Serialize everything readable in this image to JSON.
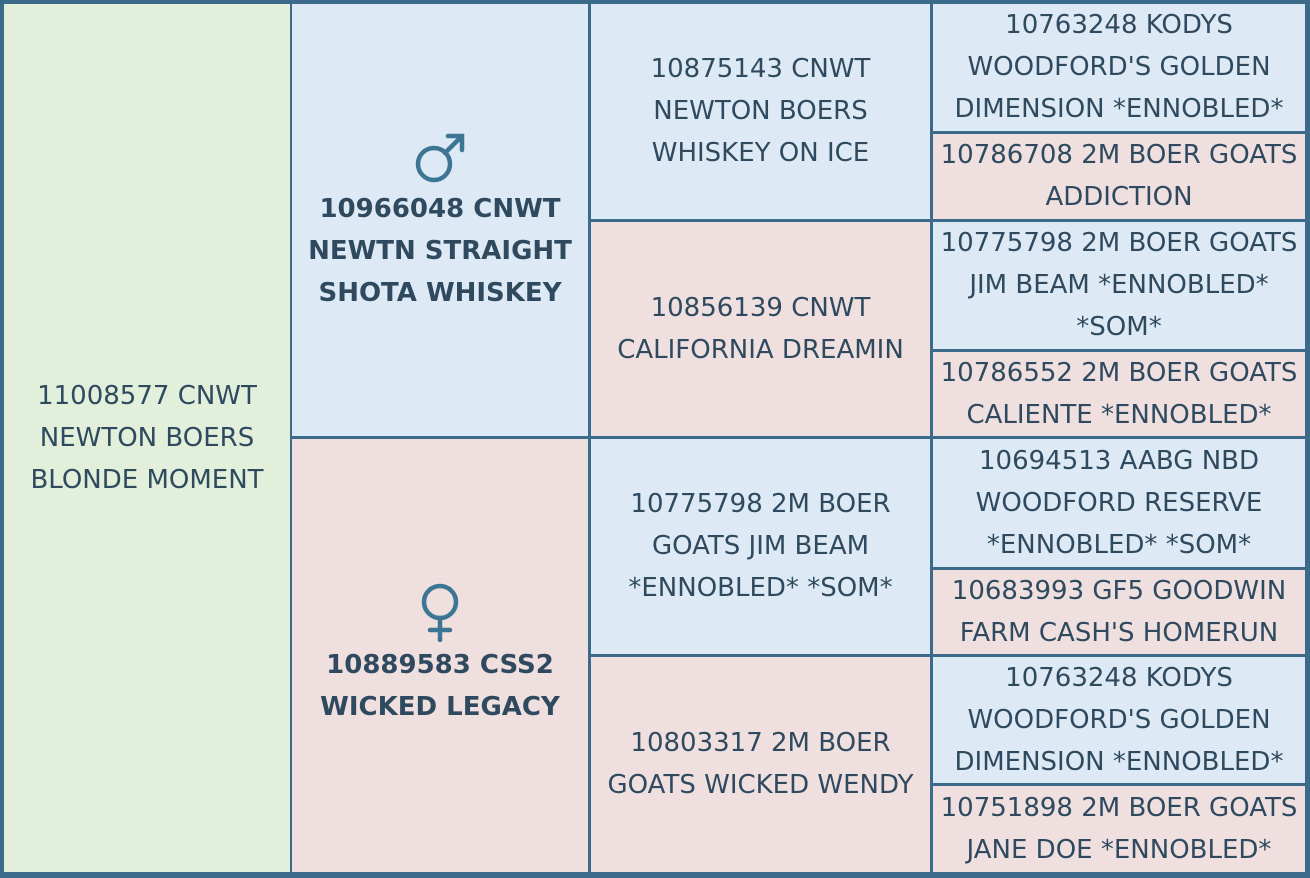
{
  "pedigree": {
    "subject": "11008577 CNWT NEWTON BOERS BLONDE MOMENT",
    "parents": [
      "10966048 CNWT NEWTN STRAIGHT SHOTA WHISKEY",
      "10889583 CSS2 WICKED LEGACY"
    ],
    "grandparents": [
      "10875143 CNWT NEWTON BOERS WHISKEY ON ICE",
      "10856139 CNWT CALIFORNIA DREAMIN",
      "10775798 2M BOER GOATS JIM BEAM *ENNOBLED* *SOM*",
      "10803317 2M BOER GOATS WICKED WENDY"
    ],
    "great_grandparents": [
      "10763248 KODYS WOODFORD'S GOLDEN DIMENSION *ENNOBLED*",
      "10786708 2M BOER GOATS ADDICTION",
      "10775798 2M BOER GOATS JIM BEAM *ENNOBLED* *SOM*",
      "10786552 2M BOER GOATS CALIENTE *ENNOBLED*",
      "10694513 AABG NBD WOODFORD RESERVE *ENNOBLED* *SOM*",
      "10683993 GF5 GOODWIN FARM CASH'S HOMERUN",
      "10763248 KODYS WOODFORD'S GOLDEN DIMENSION *ENNOBLED*",
      "10751898 2M BOER GOATS JANE DOE *ENNOBLED*"
    ]
  }
}
